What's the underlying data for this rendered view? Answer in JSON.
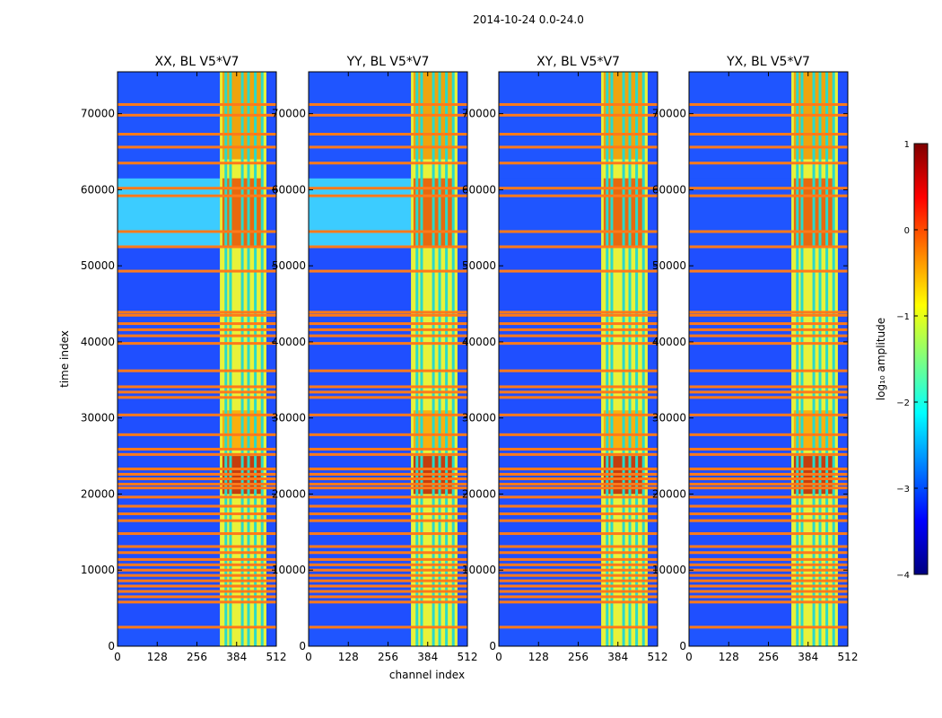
{
  "figure": {
    "suptitle": "2014-10-24 0.0-24.0",
    "xlabel": "channel index",
    "ylabel": "time index"
  },
  "colorbar": {
    "label": "log₁₀ amplitude",
    "range": [
      -4,
      1
    ],
    "ticks": [
      "1",
      "0",
      "−1",
      "−2",
      "−3",
      "−4"
    ],
    "colormap": "jet",
    "jet_colors": [
      "#00007f",
      "#0000ff",
      "#007fff",
      "#00ffff",
      "#7fff7f",
      "#ffff00",
      "#ff7f00",
      "#ff0000",
      "#7f0000"
    ]
  },
  "chart_data": {
    "type": "heatmap",
    "panels": [
      {
        "title": "XX, BL V5*V7"
      },
      {
        "title": "YY, BL V5*V7"
      },
      {
        "title": "XY, BL V5*V7"
      },
      {
        "title": "YX, BL V5*V7"
      }
    ],
    "xlim": [
      0,
      512
    ],
    "ylim": [
      0,
      75500
    ],
    "x_ticks": [
      0,
      128,
      256,
      384,
      512
    ],
    "y_ticks": [
      0,
      10000,
      20000,
      30000,
      40000,
      50000,
      60000,
      70000
    ],
    "x_tick_labels": [
      "0",
      "128",
      "256",
      "384",
      "512"
    ],
    "y_tick_labels": [
      "0",
      "10000",
      "20000",
      "30000",
      "40000",
      "50000",
      "60000",
      "70000"
    ],
    "band_channels": {
      "start": 330,
      "end": 480
    },
    "flagged_time_rows": [
      2500,
      5800,
      6500,
      7200,
      7900,
      8600,
      9300,
      10000,
      10700,
      11400,
      12300,
      13100,
      14800,
      16500,
      17400,
      18400,
      19600,
      20800,
      21300,
      22000,
      22600,
      23300,
      25200,
      25900,
      27800,
      30400,
      32700,
      33400,
      34100,
      36200,
      39800,
      40800,
      41600,
      42400,
      43500,
      43900,
      49300,
      52500,
      54500,
      59200,
      60200,
      63500,
      65600,
      67300,
      69800,
      71200
    ]
  }
}
